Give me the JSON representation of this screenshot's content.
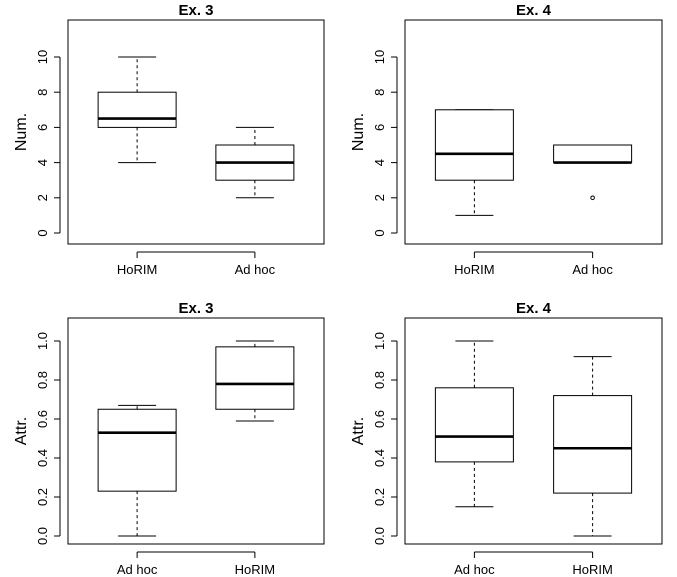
{
  "chart_data": [
    {
      "type": "boxplot",
      "title": "Ex. 3",
      "ylabel": "Num.",
      "ylim": [
        0,
        10
      ],
      "yticks": [
        "0",
        "2",
        "4",
        "6",
        "8",
        "10"
      ],
      "ytick_values": [
        0,
        2,
        4,
        6,
        8,
        10
      ],
      "categories": [
        "HoRIM",
        "Ad hoc"
      ],
      "boxes": [
        {
          "whisker_low": 4,
          "q1": 6,
          "median": 6.5,
          "q3": 8,
          "whisker_high": 10,
          "outliers": []
        },
        {
          "whisker_low": 2,
          "q1": 3,
          "median": 4,
          "q3": 5,
          "whisker_high": 6,
          "outliers": []
        }
      ]
    },
    {
      "type": "boxplot",
      "title": "Ex. 4",
      "ylabel": "Num.",
      "ylim": [
        0,
        10
      ],
      "yticks": [
        "0",
        "2",
        "4",
        "6",
        "8",
        "10"
      ],
      "ytick_values": [
        0,
        2,
        4,
        6,
        8,
        10
      ],
      "categories": [
        "HoRIM",
        "Ad hoc"
      ],
      "boxes": [
        {
          "whisker_low": 1,
          "q1": 3,
          "median": 4.5,
          "q3": 7,
          "whisker_high": 7,
          "outliers": []
        },
        {
          "whisker_low": 4,
          "q1": 4,
          "median": 4,
          "q3": 5,
          "whisker_high": 5,
          "outliers": [
            2
          ]
        }
      ]
    },
    {
      "type": "boxplot",
      "title": "Ex. 3",
      "ylabel": "Attr.",
      "ylim": [
        0,
        1
      ],
      "yticks": [
        "0.0",
        "0.2",
        "0.4",
        "0.6",
        "0.8",
        "1.0"
      ],
      "ytick_values": [
        0,
        0.2,
        0.4,
        0.6,
        0.8,
        1.0
      ],
      "categories": [
        "Ad hoc",
        "HoRIM"
      ],
      "boxes": [
        {
          "whisker_low": 0.0,
          "q1": 0.23,
          "median": 0.53,
          "q3": 0.65,
          "whisker_high": 0.67,
          "outliers": []
        },
        {
          "whisker_low": 0.59,
          "q1": 0.65,
          "median": 0.78,
          "q3": 0.97,
          "whisker_high": 1.0,
          "outliers": []
        }
      ]
    },
    {
      "type": "boxplot",
      "title": "Ex. 4",
      "ylabel": "Attr.",
      "ylim": [
        0,
        1
      ],
      "yticks": [
        "0.0",
        "0.2",
        "0.4",
        "0.6",
        "0.8",
        "1.0"
      ],
      "ytick_values": [
        0,
        0.2,
        0.4,
        0.6,
        0.8,
        1.0
      ],
      "categories": [
        "Ad hoc",
        "HoRIM"
      ],
      "boxes": [
        {
          "whisker_low": 0.15,
          "q1": 0.38,
          "median": 0.51,
          "q3": 0.76,
          "whisker_high": 1.0,
          "outliers": []
        },
        {
          "whisker_low": 0.0,
          "q1": 0.22,
          "median": 0.45,
          "q3": 0.72,
          "whisker_high": 0.92,
          "outliers": []
        }
      ]
    }
  ]
}
